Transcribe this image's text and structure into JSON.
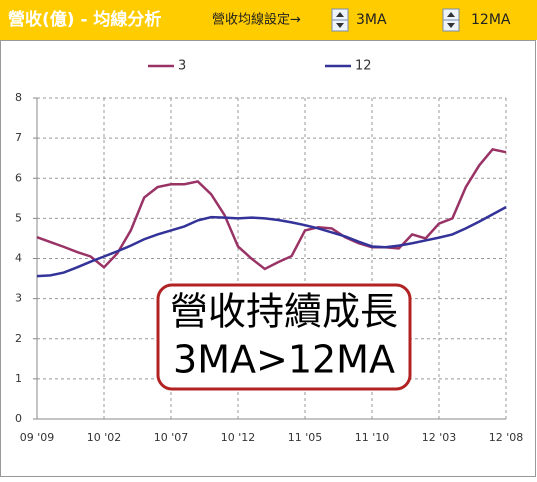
{
  "toolbar": {
    "title": "營收(億) - 均線分析",
    "setting_label": "營收均線設定→",
    "spinner_1": "3MA",
    "spinner_2": "12MA"
  },
  "chart_data": {
    "type": "line",
    "categories": [
      "09 '09",
      null,
      null,
      null,
      null,
      "10 '02",
      null,
      null,
      null,
      null,
      "10 '07",
      null,
      null,
      null,
      null,
      "10 '12",
      null,
      null,
      null,
      null,
      "11 '05",
      null,
      null,
      null,
      null,
      "11 '10",
      null,
      null,
      null,
      null,
      "12 '03",
      null,
      null,
      null,
      null,
      "12 '08"
    ],
    "series": [
      {
        "name": "3",
        "color": "#993366",
        "values": [
          4.53,
          4.41,
          4.29,
          4.16,
          4.05,
          3.78,
          4.13,
          4.7,
          5.52,
          5.78,
          5.85,
          5.85,
          5.92,
          5.6,
          5.08,
          4.3,
          4.0,
          3.74,
          3.91,
          4.06,
          4.7,
          4.78,
          4.75,
          4.53,
          4.38,
          4.28,
          4.28,
          4.25,
          4.6,
          4.5,
          4.87,
          5.0,
          5.78,
          6.32,
          6.72,
          6.65
        ]
      },
      {
        "name": "12",
        "color": "#333399",
        "values": [
          3.56,
          3.58,
          3.65,
          3.78,
          3.92,
          4.05,
          4.18,
          4.32,
          4.48,
          4.6,
          4.7,
          4.8,
          4.95,
          5.03,
          5.02,
          5.0,
          5.02,
          5.0,
          4.96,
          4.9,
          4.83,
          4.75,
          4.65,
          4.55,
          4.42,
          4.3,
          4.28,
          4.32,
          4.38,
          4.45,
          4.52,
          4.6,
          4.75,
          4.92,
          5.1,
          5.28
        ]
      }
    ],
    "ylim": [
      0,
      8
    ],
    "yticks": [
      0,
      1,
      2,
      3,
      4,
      5,
      6,
      7,
      8
    ],
    "grid": true,
    "legend": "top",
    "annotations": [
      "營收持續成長",
      "3MA>12MA"
    ]
  }
}
